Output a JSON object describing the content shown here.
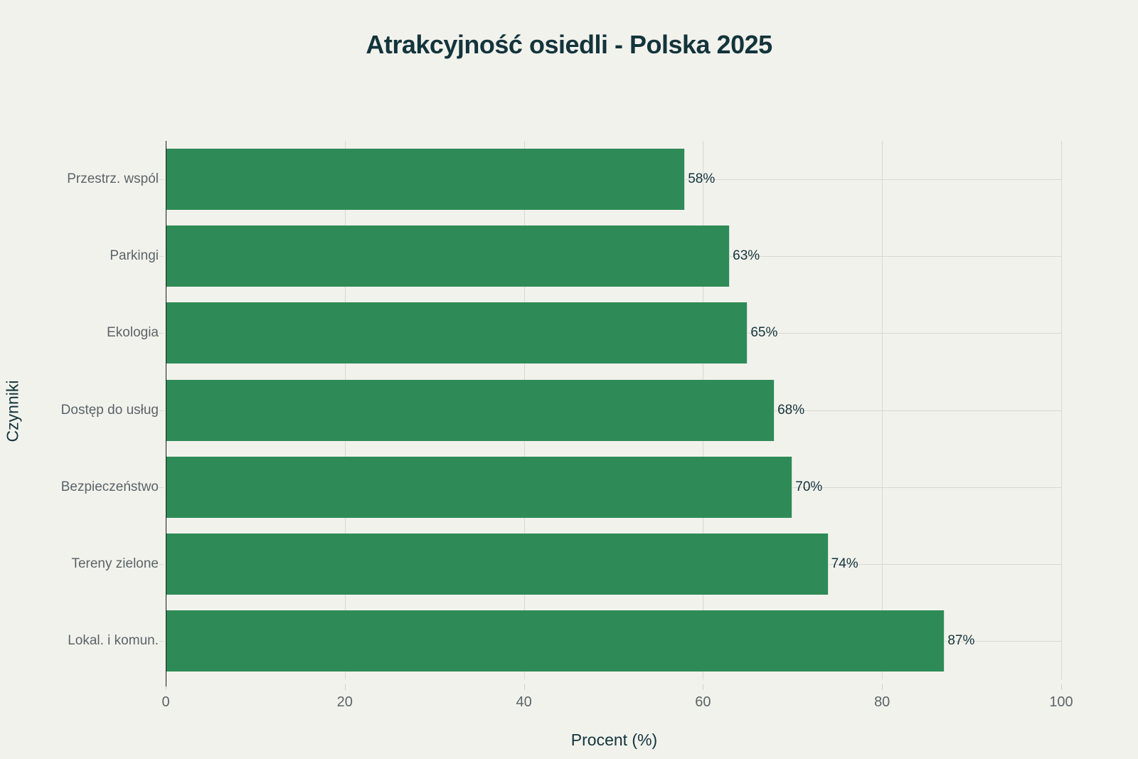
{
  "title": "Atrakcyjność osiedli - Polska 2025",
  "xlabel": "Procent (%)",
  "ylabel": "Czynniki",
  "colors": {
    "bar": "#2e8b57",
    "background": "#f2f2ed",
    "title": "#13343b"
  },
  "xticks": [
    "0",
    "20",
    "40",
    "60",
    "80",
    "100"
  ],
  "bars": [
    {
      "label": "Przestrz. wspól",
      "value": 58,
      "text": "58%"
    },
    {
      "label": "Parkingi",
      "value": 63,
      "text": "63%"
    },
    {
      "label": "Ekologia",
      "value": 65,
      "text": "65%"
    },
    {
      "label": "Dostęp do usług",
      "value": 68,
      "text": "68%"
    },
    {
      "label": "Bezpieczeństwo",
      "value": 70,
      "text": "70%"
    },
    {
      "label": "Tereny zielone",
      "value": 74,
      "text": "74%"
    },
    {
      "label": "Lokal. i komun.",
      "value": 87,
      "text": "87%"
    }
  ],
  "chart_data": {
    "type": "bar",
    "orientation": "horizontal",
    "title": "Atrakcyjność osiedli - Polska 2025",
    "xlabel": "Procent (%)",
    "ylabel": "Czynniki",
    "categories": [
      "Przestrz. wspól",
      "Parkingi",
      "Ekologia",
      "Dostęp do usług",
      "Bezpieczeństwo",
      "Tereny zielone",
      "Lokal. i komun."
    ],
    "values": [
      58,
      63,
      65,
      68,
      70,
      74,
      87
    ],
    "data_labels": [
      "58%",
      "63%",
      "65%",
      "68%",
      "70%",
      "74%",
      "87%"
    ],
    "xlim": [
      0,
      100
    ],
    "xticks": [
      0,
      20,
      40,
      60,
      80,
      100
    ],
    "grid": true,
    "legend": null
  }
}
